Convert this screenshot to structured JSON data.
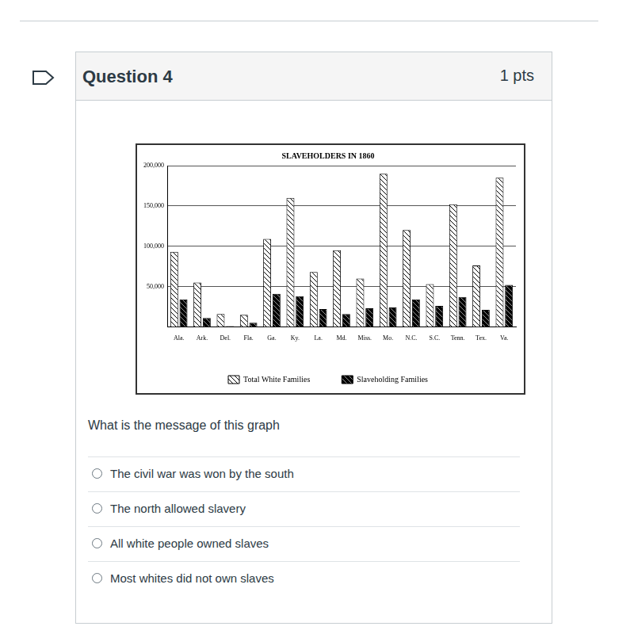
{
  "question": {
    "label": "Question 4",
    "points": "1 pts",
    "prompt": "What is the message of this graph",
    "options": [
      "The civil war was won by the south",
      "The north allowed slavery",
      "All white people owned slaves",
      "Most whites did not own slaves"
    ]
  },
  "chart_data": {
    "type": "bar",
    "title": "SLAVEHOLDERS IN 1860",
    "categories": [
      "Ala.",
      "Ark.",
      "Del.",
      "Fla.",
      "Ga.",
      "Ky.",
      "La.",
      "Md.",
      "Miss.",
      "Mo.",
      "N.C.",
      "S.C.",
      "Tenn.",
      "Tex.",
      "Va."
    ],
    "series": [
      {
        "name": "Total White Families",
        "color": "#ffffff",
        "values": [
          93000,
          55000,
          16000,
          15000,
          109000,
          160000,
          68000,
          95000,
          60000,
          190000,
          120000,
          53000,
          152000,
          76000,
          185000
        ]
      },
      {
        "name": "Slaveholding Families",
        "color": "#000000",
        "values": [
          34000,
          11000,
          1000,
          5000,
          41000,
          38000,
          22000,
          16000,
          23000,
          24000,
          34000,
          26000,
          37000,
          21000,
          52000
        ]
      }
    ],
    "ylim": [
      0,
      200000
    ],
    "yticks": [
      {
        "value": 50000,
        "label": "50,000"
      },
      {
        "value": 100000,
        "label": "100,000"
      },
      {
        "value": 150000,
        "label": "150,000"
      },
      {
        "value": 200000,
        "label": "200,000"
      }
    ],
    "grid": true,
    "legend": "bottom"
  }
}
